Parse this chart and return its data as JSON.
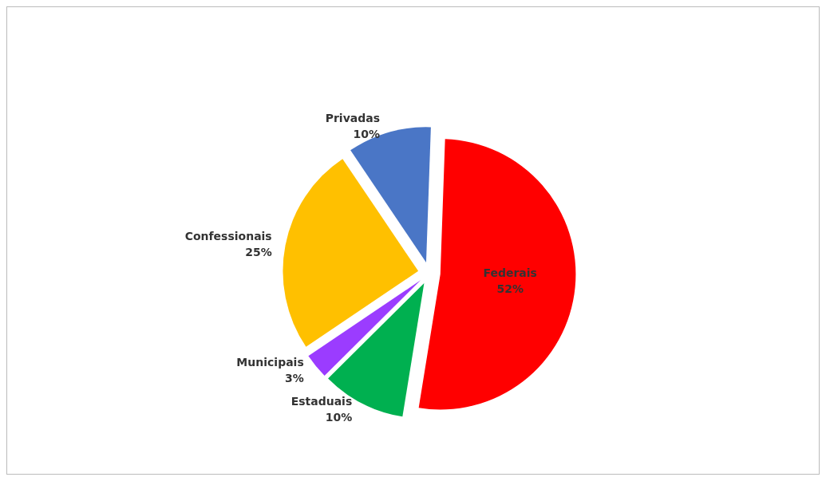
{
  "chart_data": {
    "type": "pie",
    "categories": [
      "Federais",
      "Estaduais",
      "Municipais",
      "Confessionais",
      "Privadas"
    ],
    "values": [
      52,
      10,
      3,
      25,
      10
    ],
    "colors": [
      "#ff0000",
      "#00b050",
      "#9b3cff",
      "#ffc000",
      "#4a76c6"
    ],
    "value_labels": [
      "52%",
      "10%",
      "3%",
      "25%",
      "10%"
    ],
    "legend": false
  }
}
